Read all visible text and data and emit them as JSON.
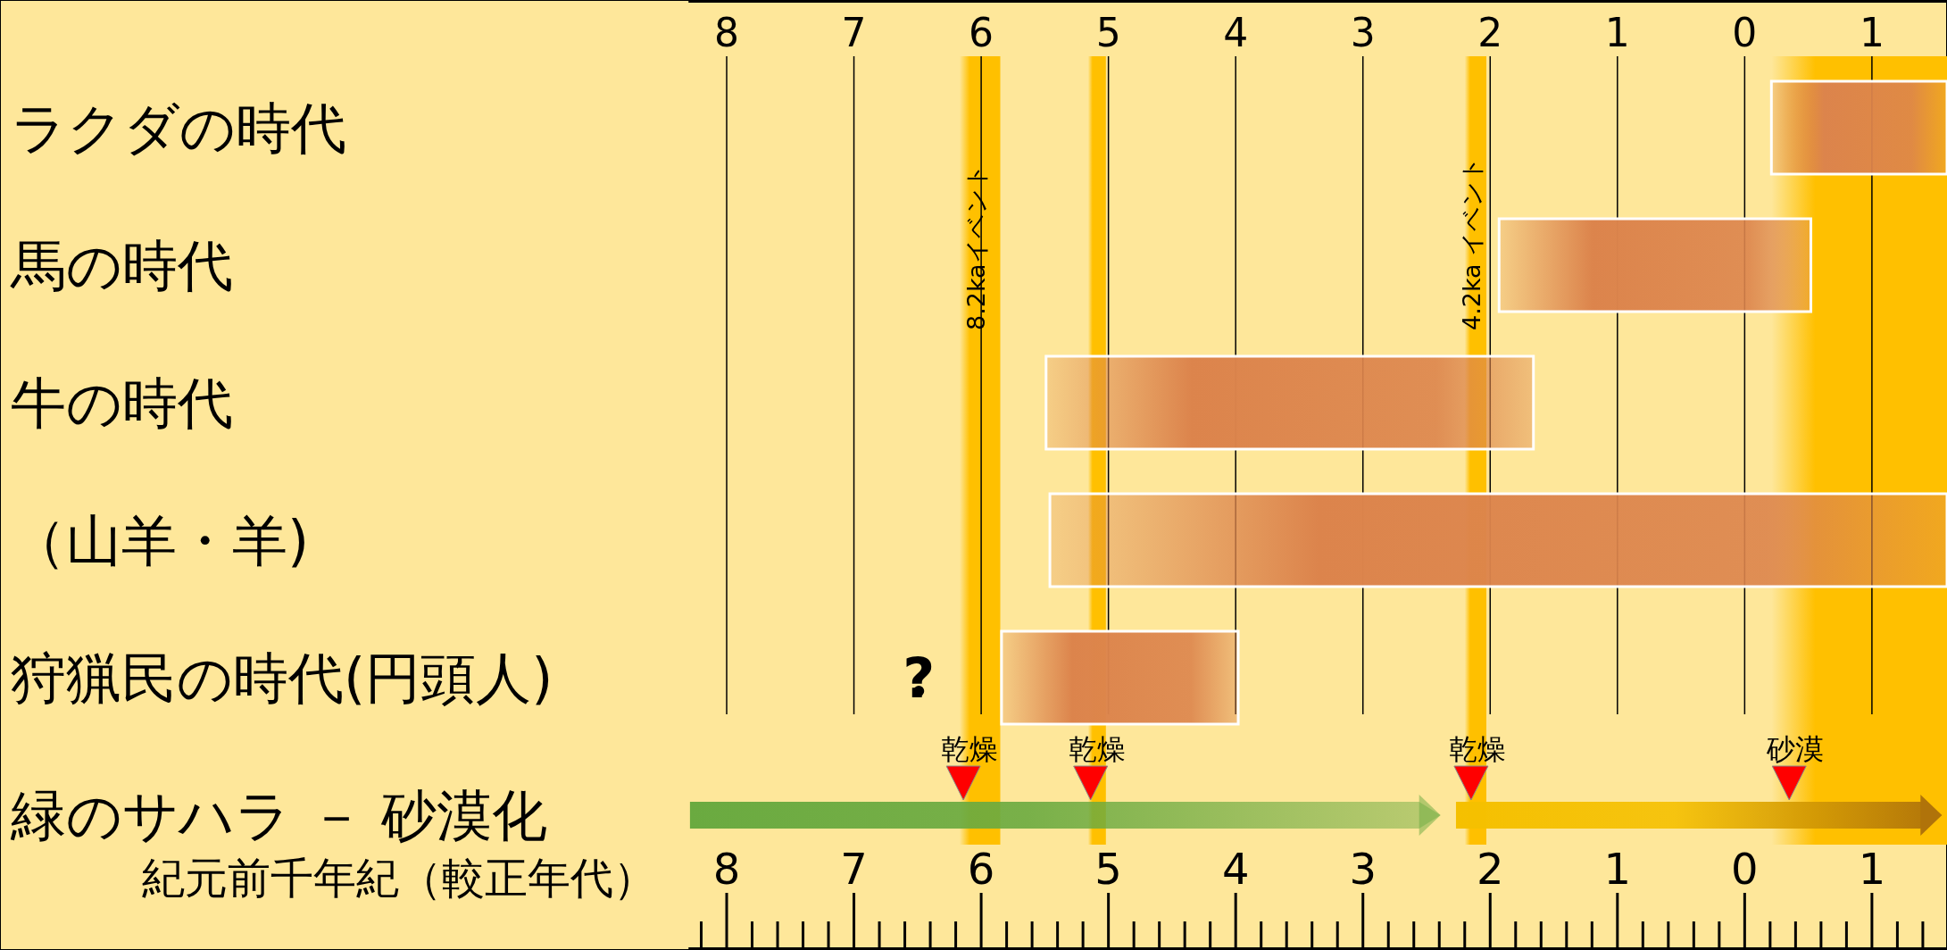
{
  "chart_data": {
    "type": "bar",
    "orientation": "horizontal",
    "categories": [
      "ラクダの時代",
      "馬の時代",
      "牛の時代",
      "（山羊・羊)",
      "狩猟民の時代(円頭人)",
      "緑のサハラ － 砂漠化"
    ],
    "series": [
      {
        "type": "bar",
        "color": "#dc844c",
        "base": [
          0.21,
          -1.93,
          -5.49,
          -5.46,
          -5.84,
          null
        ],
        "values": [
          1.38,
          2.45,
          3.83,
          7.05,
          1.86,
          null
        ]
      },
      {
        "type": "bar",
        "marker": "triangle",
        "color": "#6aaa40",
        "base": [
          null,
          null,
          null,
          null,
          null,
          -8.29
        ],
        "values": [
          null,
          null,
          null,
          null,
          null,
          5.9
        ]
      },
      {
        "type": "bar",
        "marker": "triangle",
        "color": "#f5c000",
        "base": [
          null,
          null,
          null,
          null,
          null,
          -2.27
        ],
        "values": [
          null,
          null,
          null,
          null,
          null,
          3.82
        ]
      },
      {
        "type": "scatter",
        "marker": "triangle",
        "color": "#ff0000",
        "x": [
          "緑のサハラ － 砂漠化",
          "緑のサハラ － 砂漠化",
          "緑のサハラ － 砂漠化",
          "緑のサハラ － 砂漠化"
        ],
        "values": [
          -6.14,
          -5.14,
          -2.15,
          0.35
        ],
        "value_labels": [
          "乾燥",
          "乾燥",
          "乾燥",
          "砂漠"
        ]
      },
      {
        "type": "scatter",
        "marker": "circle",
        "color": "#000000",
        "x": [
          "狩猟民の時代(円頭人)"
        ],
        "values": [
          -6.49
        ],
        "value_labels": [
          "?"
        ]
      }
    ],
    "xlabel": "紀元前千年紀（較正年代）",
    "xlim": [
      -8.3,
      1.59
    ],
    "xticks": [
      {
        "value": -8,
        "label": "8"
      },
      {
        "value": -7,
        "label": "7"
      },
      {
        "value": -6,
        "label": "6"
      },
      {
        "value": -5,
        "label": "5"
      },
      {
        "value": -4,
        "label": "4"
      },
      {
        "value": -3,
        "label": "3"
      },
      {
        "value": -2,
        "label": "2"
      },
      {
        "value": -1,
        "label": "1"
      },
      {
        "value": 0,
        "label": "0"
      },
      {
        "value": 1,
        "label": "1"
      }
    ],
    "x2lim": [
      -8.3,
      1.59
    ],
    "x2ticks": [
      {
        "value": -8,
        "label": "8"
      },
      {
        "value": -7,
        "label": "7"
      },
      {
        "value": -6,
        "label": "6"
      },
      {
        "value": -5,
        "label": "5"
      },
      {
        "value": -4,
        "label": "4"
      },
      {
        "value": -3,
        "label": "3"
      },
      {
        "value": -2,
        "label": "2"
      },
      {
        "value": -1,
        "label": "1"
      },
      {
        "value": 0,
        "label": "0"
      },
      {
        "value": 1,
        "label": "1"
      }
    ],
    "grid": "x",
    "bands": [
      {
        "axis": "x",
        "from": -6.17,
        "to": -5.85,
        "label": "8.2kaイベント",
        "color": "#ffc000"
      },
      {
        "axis": "x",
        "from": -5.16,
        "to": -5.02,
        "label": null,
        "color": "#ffc000"
      },
      {
        "axis": "x",
        "from": -2.2,
        "to": -2.03,
        "label": "4.2ka イベント",
        "color": "#ffc000"
      },
      {
        "axis": "x",
        "from": 0.21,
        "to": 1.59,
        "label": null,
        "color": "#ffc000"
      }
    ]
  }
}
